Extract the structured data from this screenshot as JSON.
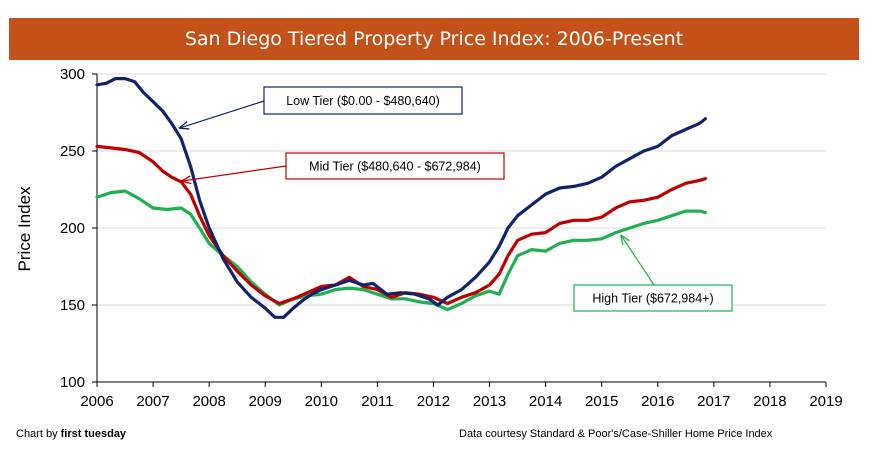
{
  "colors": {
    "title_bg": "#c5511a",
    "low_tier": "#13236b",
    "mid_tier": "#c00000",
    "high_tier": "#20b050",
    "grid": "#d9d9d9"
  },
  "footer": {
    "left_prefix": "Chart by ",
    "left_brand": "first tuesday",
    "right": "Data courtesy Standard & Poor's/Case-Shiller Home Price Index"
  },
  "chart_data": {
    "type": "line",
    "title": "San Diego Tiered Property Price Index: 2006-Present",
    "xlabel": "",
    "ylabel": "Price Index",
    "xlim": [
      2006,
      2019
    ],
    "ylim": [
      100,
      300
    ],
    "x_ticks": [
      2006,
      2007,
      2008,
      2009,
      2010,
      2011,
      2012,
      2013,
      2014,
      2015,
      2016,
      2017,
      2018,
      2019
    ],
    "y_ticks": [
      100,
      150,
      200,
      250,
      300
    ],
    "grid": true,
    "legend": "callouts",
    "series": [
      {
        "name": "Low Tier ($0.00 - $480,640)",
        "color": "#13236b",
        "x": [
          2006.0,
          2006.17,
          2006.33,
          2006.5,
          2006.67,
          2006.83,
          2007.0,
          2007.17,
          2007.33,
          2007.5,
          2007.67,
          2007.83,
          2008.0,
          2008.25,
          2008.5,
          2008.75,
          2009.0,
          2009.17,
          2009.33,
          2009.5,
          2009.67,
          2009.83,
          2010.0,
          2010.25,
          2010.5,
          2010.75,
          2010.92,
          2011.17,
          2011.42,
          2011.67,
          2011.92,
          2012.08,
          2012.25,
          2012.5,
          2012.75,
          2013.0,
          2013.17,
          2013.33,
          2013.5,
          2013.75,
          2014.0,
          2014.25,
          2014.5,
          2014.75,
          2015.0,
          2015.25,
          2015.5,
          2015.75,
          2016.0,
          2016.25,
          2016.5,
          2016.75,
          2016.85
        ],
        "y": [
          293,
          294,
          297,
          297,
          295,
          288,
          282,
          276,
          268,
          258,
          240,
          218,
          200,
          180,
          165,
          155,
          148,
          142,
          142,
          148,
          153,
          157,
          160,
          163,
          166,
          163,
          164,
          157,
          158,
          157,
          154,
          150,
          155,
          160,
          168,
          178,
          188,
          200,
          208,
          215,
          222,
          226,
          227,
          229,
          233,
          240,
          245,
          250,
          253,
          260,
          264,
          268,
          271
        ]
      },
      {
        "name": "Mid Tier ($480,640 - $672,984)",
        "color": "#c00000",
        "x": [
          2006.0,
          2006.25,
          2006.5,
          2006.75,
          2007.0,
          2007.17,
          2007.33,
          2007.5,
          2007.67,
          2007.83,
          2008.0,
          2008.25,
          2008.5,
          2008.75,
          2009.0,
          2009.25,
          2009.5,
          2009.75,
          2010.0,
          2010.25,
          2010.5,
          2010.75,
          2011.0,
          2011.25,
          2011.5,
          2011.75,
          2012.0,
          2012.25,
          2012.5,
          2012.75,
          2013.0,
          2013.17,
          2013.33,
          2013.5,
          2013.75,
          2014.0,
          2014.25,
          2014.5,
          2014.75,
          2015.0,
          2015.25,
          2015.5,
          2015.75,
          2016.0,
          2016.25,
          2016.5,
          2016.75,
          2016.85
        ],
        "y": [
          253,
          252,
          251,
          249,
          243,
          237,
          233,
          230,
          222,
          208,
          195,
          182,
          172,
          163,
          156,
          151,
          154,
          158,
          162,
          163,
          168,
          162,
          160,
          155,
          158,
          157,
          155,
          151,
          155,
          158,
          163,
          170,
          182,
          192,
          196,
          197,
          203,
          205,
          205,
          207,
          213,
          217,
          218,
          220,
          225,
          229,
          231,
          232
        ]
      },
      {
        "name": "High Tier ($672,984+)",
        "color": "#20b050",
        "x": [
          2006.0,
          2006.25,
          2006.5,
          2006.75,
          2007.0,
          2007.25,
          2007.5,
          2007.67,
          2007.83,
          2008.0,
          2008.25,
          2008.5,
          2008.75,
          2009.0,
          2009.25,
          2009.5,
          2009.75,
          2010.0,
          2010.25,
          2010.5,
          2010.75,
          2011.0,
          2011.25,
          2011.5,
          2011.75,
          2012.0,
          2012.25,
          2012.5,
          2012.75,
          2013.0,
          2013.17,
          2013.33,
          2013.5,
          2013.75,
          2014.0,
          2014.25,
          2014.5,
          2014.75,
          2015.0,
          2015.25,
          2015.5,
          2015.75,
          2016.0,
          2016.25,
          2016.5,
          2016.75,
          2016.85
        ],
        "y": [
          220,
          223,
          224,
          219,
          213,
          212,
          213,
          209,
          200,
          190,
          182,
          175,
          165,
          157,
          150,
          154,
          156,
          157,
          160,
          161,
          160,
          157,
          154,
          154,
          152,
          151,
          147,
          151,
          156,
          159,
          157,
          170,
          182,
          186,
          185,
          190,
          192,
          192,
          193,
          197,
          200,
          203,
          205,
          208,
          211,
          211,
          210
        ]
      }
    ],
    "annotations": [
      {
        "text": "Low Tier ($0.00 - $480,640)",
        "series": 0
      },
      {
        "text": "Mid Tier ($480,640 - $672,984)",
        "series": 1
      },
      {
        "text": "High Tier ($672,984+)",
        "series": 2
      }
    ]
  }
}
